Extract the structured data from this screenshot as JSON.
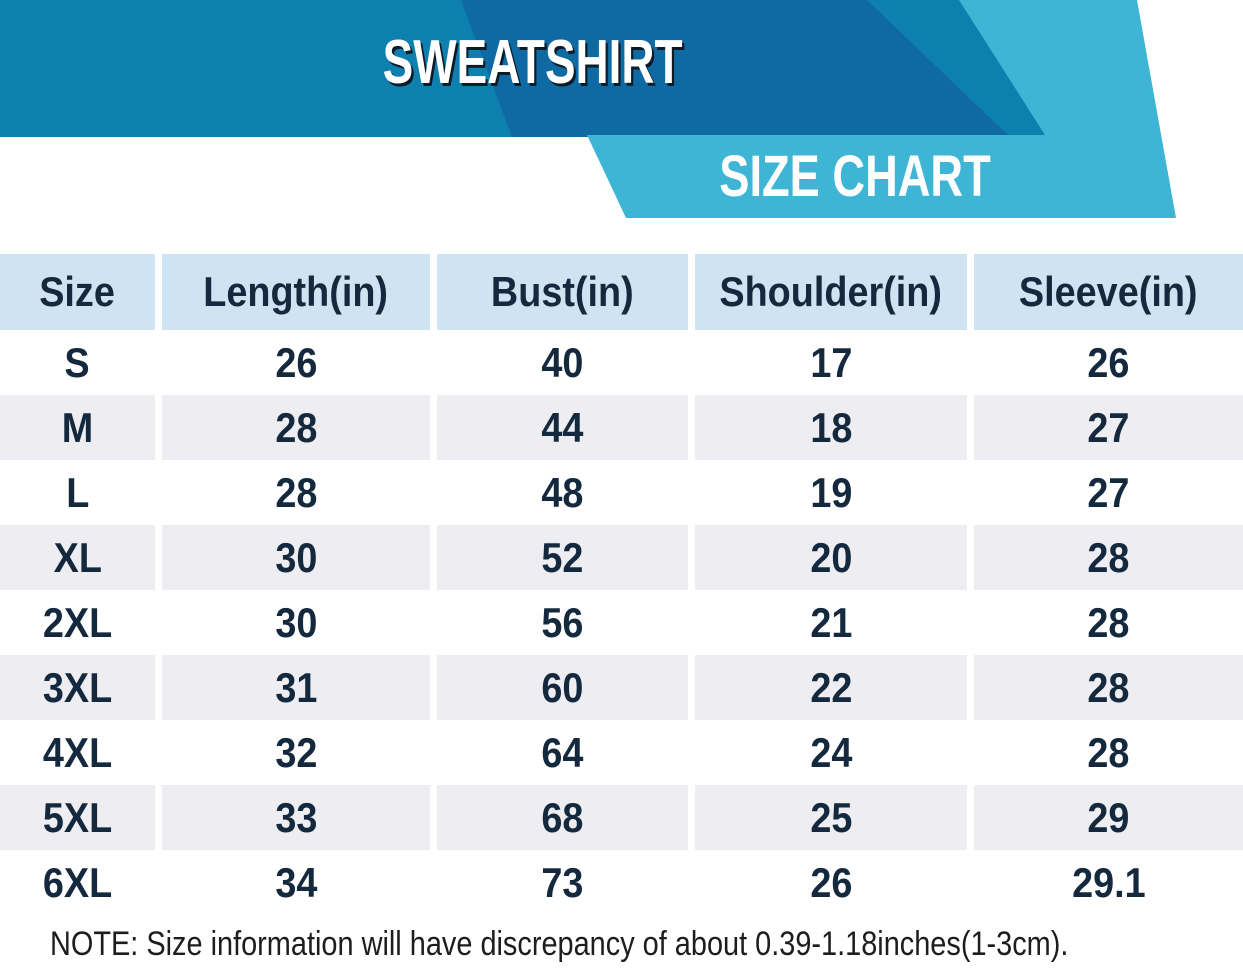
{
  "banner": {
    "title": "SWEATSHIRT",
    "subtitle": "SIZE CHART"
  },
  "colors": {
    "banner_blue": "#0E80AF",
    "banner_dark_blue": "#0F69A2",
    "banner_teal": "#3EB5D5",
    "header_row_bg": "#CFE4F2",
    "alt_row_bg": "#EDEDF2",
    "table_text": "#15293E"
  },
  "chart_data": {
    "type": "table",
    "title": "SWEATSHIRT",
    "subtitle": "SIZE CHART",
    "columns": [
      "Size",
      "Length(in)",
      "Bust(in)",
      "Shoulder(in)",
      "Sleeve(in)"
    ],
    "rows": [
      [
        "S",
        "26",
        "40",
        "17",
        "26"
      ],
      [
        "M",
        "28",
        "44",
        "18",
        "27"
      ],
      [
        "L",
        "28",
        "48",
        "19",
        "27"
      ],
      [
        "XL",
        "30",
        "52",
        "20",
        "28"
      ],
      [
        "2XL",
        "30",
        "56",
        "21",
        "28"
      ],
      [
        "3XL",
        "31",
        "60",
        "22",
        "28"
      ],
      [
        "4XL",
        "32",
        "64",
        "24",
        "28"
      ],
      [
        "5XL",
        "33",
        "68",
        "25",
        "29"
      ],
      [
        "6XL",
        "34",
        "73",
        "26",
        "29.1"
      ]
    ],
    "note": "NOTE: Size information will have discrepancy of about 0.39-1.18inches(1-3cm)."
  }
}
